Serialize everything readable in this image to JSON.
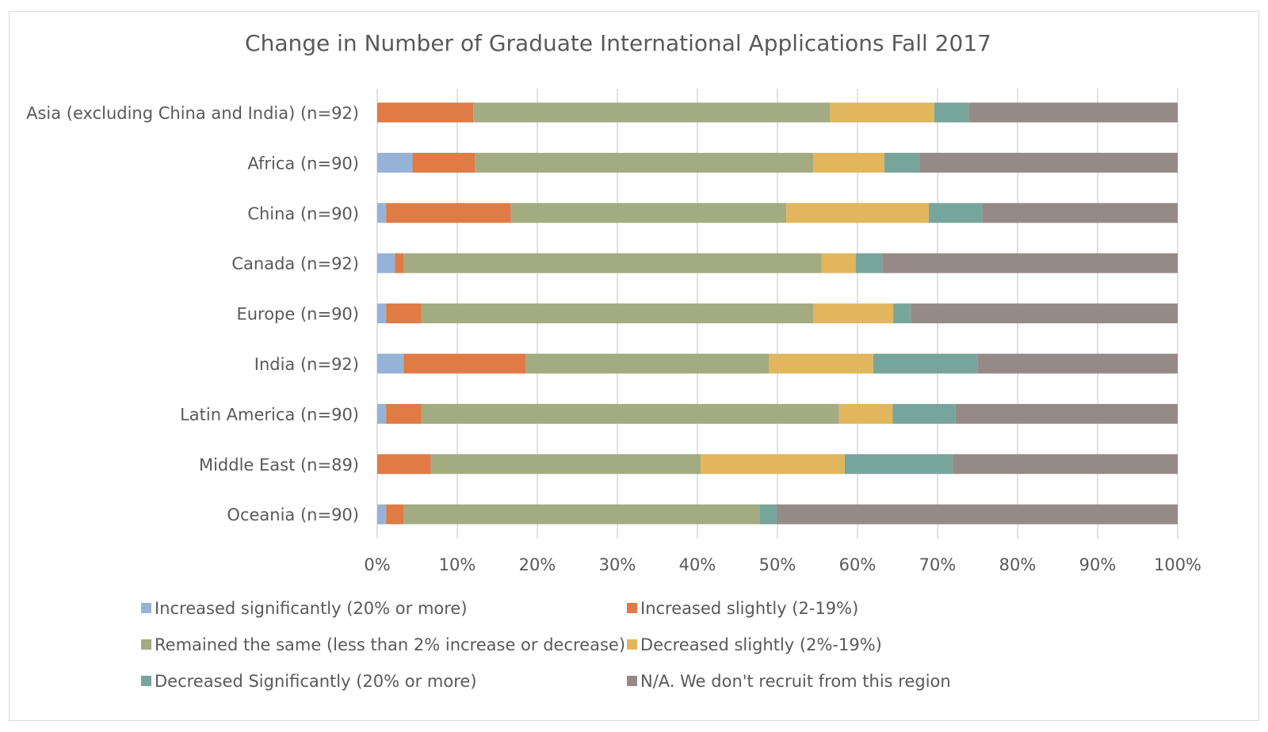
{
  "chart_data": {
    "type": "bar",
    "orientation": "horizontal",
    "stacked": "percent",
    "title": "Change in Number of Graduate International Applications Fall 2017",
    "categories": [
      "Asia (excluding China and India) (n=92)",
      "Africa (n=90)",
      "China (n=90)",
      "Canada (n=92)",
      "Europe (n=90)",
      "India (n=92)",
      "Latin America (n=90)",
      "Middle East (n=89)",
      "Oceania (n=90)"
    ],
    "series": [
      {
        "name": "Increased significantly (20% or more)",
        "color": "#95b3d7",
        "values": [
          0,
          4.4,
          1.1,
          2.2,
          1.1,
          3.3,
          1.1,
          0,
          1.1
        ]
      },
      {
        "name": "Increased slightly (2-19%)",
        "color": "#e07b45",
        "values": [
          12.0,
          7.8,
          15.6,
          1.1,
          4.4,
          15.2,
          4.4,
          6.7,
          2.2
        ]
      },
      {
        "name": "Remained the same (less than 2% increase or decrease)",
        "color": "#a3ab80",
        "values": [
          44.6,
          42.2,
          34.4,
          52.2,
          48.9,
          30.4,
          52.2,
          33.7,
          44.4
        ]
      },
      {
        "name": "Decreased slightly (2%-19%)",
        "color": "#e2b65d",
        "values": [
          13.0,
          8.9,
          17.8,
          4.3,
          10.0,
          13.0,
          6.7,
          18.0,
          0
        ]
      },
      {
        "name": "Decreased Significantly (20% or more)",
        "color": "#78a59b",
        "values": [
          4.3,
          4.4,
          6.7,
          3.3,
          2.2,
          13.0,
          7.8,
          13.5,
          2.2
        ]
      },
      {
        "name": "N/A. We don't recruit from this region",
        "color": "#968a88",
        "values": [
          26.1,
          32.2,
          24.4,
          36.9,
          33.3,
          25.0,
          27.8,
          28.1,
          50.0
        ]
      }
    ],
    "xlim": [
      0,
      100
    ],
    "xticks": [
      "0%",
      "10%",
      "20%",
      "30%",
      "40%",
      "50%",
      "60%",
      "70%",
      "80%",
      "90%",
      "100%"
    ],
    "grid": "vertical",
    "legend": "bottom"
  }
}
